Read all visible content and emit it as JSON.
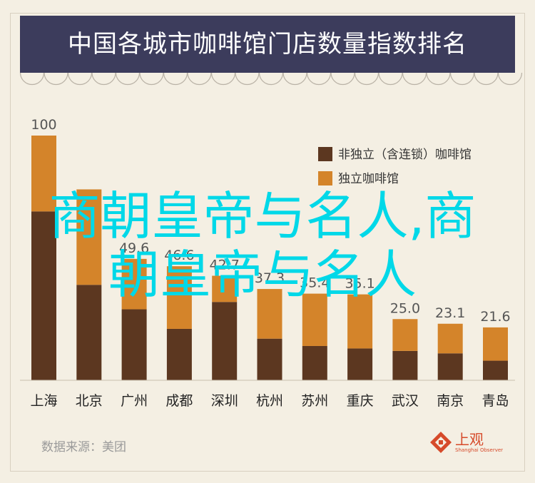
{
  "chart_data": {
    "type": "bar",
    "title": "中国各城市咖啡馆门店数量指数排名",
    "categories": [
      "上海",
      "北京",
      "广州",
      "成都",
      "深圳",
      "杭州",
      "苏州",
      "重庆",
      "武汉",
      "南京",
      "青岛"
    ],
    "series": [
      {
        "name": "非独立（含连锁）咖啡馆",
        "values": [
          69,
          39,
          29,
          21,
          32,
          17,
          14,
          13,
          12,
          11,
          8
        ],
        "color": "#5c3720"
      },
      {
        "name": "独立咖啡馆",
        "values": [
          31,
          39,
          20.6,
          25.6,
          10.7,
          20.3,
          21.4,
          22.1,
          13,
          12.1,
          13.6
        ],
        "color": "#d4842a"
      }
    ],
    "totals": [
      100,
      78,
      49.6,
      46.6,
      42.7,
      37.3,
      35.4,
      35.1,
      25.0,
      23.1,
      21.6
    ],
    "total_labels": [
      "100",
      "",
      "49.6",
      "46.6",
      "42.7",
      "37.3",
      "35.4",
      "35.1",
      "25.0",
      "23.1",
      "21.6"
    ],
    "ylim": [
      0,
      100
    ],
    "legend_position": "top-right",
    "grid": false
  },
  "overlay": {
    "line1": "商朝皇帝与名人,商",
    "line2": "朝皇帝与名人"
  },
  "footer": {
    "source": "数据来源：美团",
    "logo_name": "上观",
    "logo_sub": "Shanghai Observer"
  },
  "colors": {
    "background": "#f4efe3",
    "title_bg": "#3c3c5c",
    "overlay_text": "#00d8e8",
    "logo": "#d64a2a"
  }
}
